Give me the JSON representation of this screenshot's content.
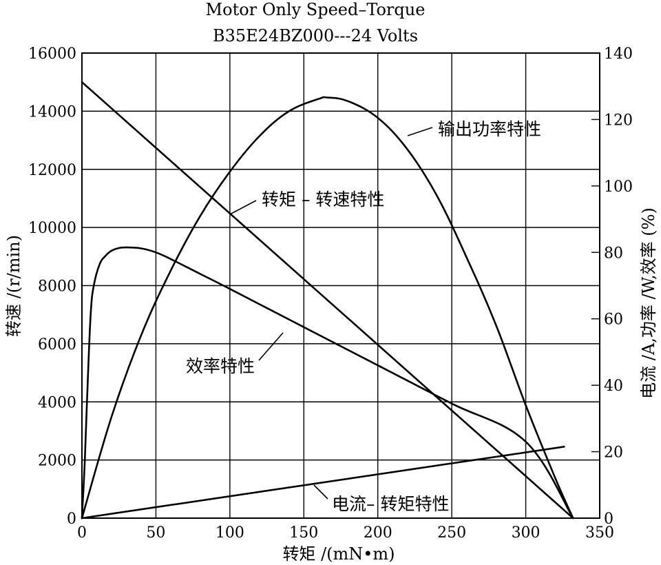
{
  "chart_data": {
    "type": "line",
    "title": "Motor Only Speed–Torque",
    "subtitle": "B35E24BZ000---24 Volts",
    "xlabel": "转矩 /(mN•m)",
    "ylabel_left": "转速 /(r/min)",
    "ylabel_right": "电流 /A,功率 /W,效率 (%)",
    "xlim": [
      0,
      350
    ],
    "ylim_left": [
      0,
      16000
    ],
    "ylim_right": [
      0,
      140
    ],
    "x_ticks": [
      0,
      50,
      100,
      150,
      200,
      250,
      300,
      350
    ],
    "y_ticks_left": [
      0,
      2000,
      4000,
      6000,
      8000,
      10000,
      12000,
      14000,
      16000
    ],
    "y_ticks_right": [
      0,
      20,
      40,
      60,
      80,
      100,
      120,
      140
    ],
    "grid": true,
    "series": [
      {
        "name": "转矩-转速特性",
        "axis": "left",
        "x": [
          0,
          332
        ],
        "y": [
          15000,
          0
        ]
      },
      {
        "name": "输出功率特性",
        "axis": "right",
        "x": [
          0,
          20,
          40,
          60,
          80,
          100,
          120,
          140,
          160,
          166,
          180,
          200,
          220,
          240,
          260,
          280,
          300,
          320,
          332
        ],
        "y": [
          0,
          30.5,
          55,
          74.5,
          91,
          104.3,
          115,
          122.5,
          126.2,
          126.6,
          125.5,
          120.5,
          111,
          97,
          78.5,
          58,
          34,
          12,
          0
        ]
      },
      {
        "name": "效率特性",
        "axis": "right",
        "x": [
          0,
          2,
          4,
          6,
          8,
          12,
          16,
          20,
          25,
          30,
          40,
          50,
          60,
          80,
          100,
          150,
          200,
          250,
          300,
          332
        ],
        "y": [
          0,
          18,
          42,
          62,
          70,
          76.5,
          79,
          80.5,
          81.3,
          81.5,
          81.2,
          80,
          78,
          73.5,
          69,
          57.5,
          46,
          34.5,
          23,
          0
        ]
      },
      {
        "name": "电流-转矩特性",
        "axis": "right",
        "x": [
          0,
          326
        ],
        "y": [
          0,
          21.5
        ]
      }
    ],
    "annotations": [
      {
        "text": "输出功率特性",
        "series": "输出功率特性"
      },
      {
        "text": "转矩 – 转速特性",
        "series": "转矩-转速特性"
      },
      {
        "text": "效率特性",
        "series": "效率特性"
      },
      {
        "text": "电流– 转矩特性",
        "series": "电流-转矩特性"
      }
    ]
  }
}
